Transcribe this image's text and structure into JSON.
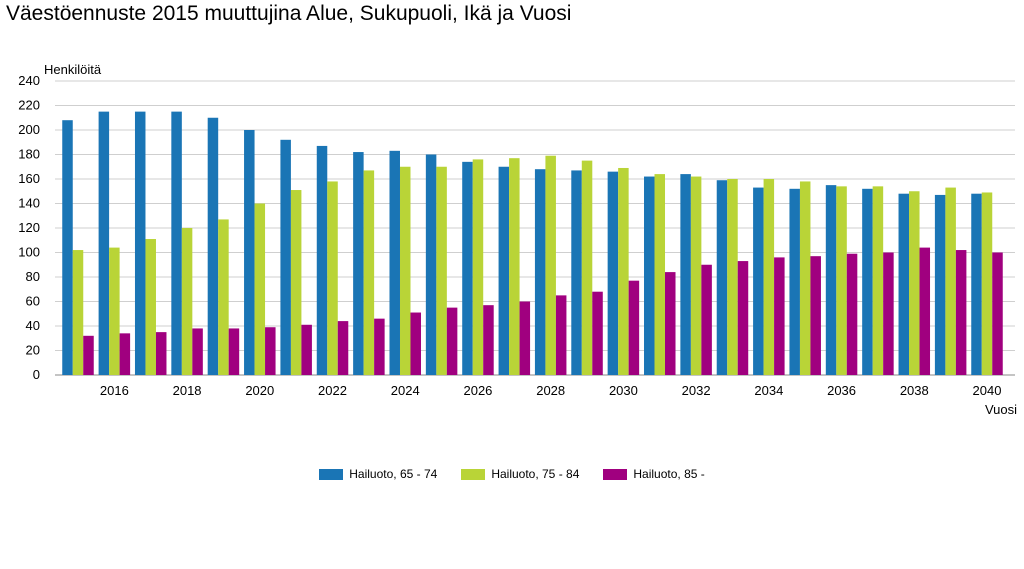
{
  "chart_data": {
    "type": "bar",
    "title": "Väestöennuste 2015 muuttujina Alue, Sukupuoli, Ikä ja Vuosi",
    "ylabel": "Henkilöitä",
    "xlabel": "Vuosi",
    "ylim": [
      0,
      240
    ],
    "yticks": [
      0,
      20,
      40,
      60,
      80,
      100,
      120,
      140,
      160,
      180,
      200,
      220,
      240
    ],
    "grid": true,
    "legend_position": "bottom",
    "categories": [
      "2015",
      "2016",
      "2017",
      "2018",
      "2019",
      "2020",
      "2021",
      "2022",
      "2023",
      "2024",
      "2025",
      "2026",
      "2027",
      "2028",
      "2029",
      "2030",
      "2031",
      "2032",
      "2033",
      "2034",
      "2035",
      "2036",
      "2037",
      "2038",
      "2039",
      "2040"
    ],
    "x_tick_labels": [
      "",
      "2016",
      "",
      "2018",
      "",
      "2020",
      "",
      "2022",
      "",
      "2024",
      "",
      "2026",
      "",
      "2028",
      "",
      "2030",
      "",
      "2032",
      "",
      "2034",
      "",
      "2036",
      "",
      "2038",
      "",
      "2040"
    ],
    "series": [
      {
        "name": "Hailuoto, 65 - 74",
        "color": "#1a75b5",
        "values": [
          208,
          215,
          215,
          215,
          210,
          200,
          192,
          187,
          182,
          183,
          180,
          174,
          170,
          168,
          167,
          166,
          162,
          164,
          159,
          153,
          152,
          155,
          152,
          148,
          147,
          148
        ]
      },
      {
        "name": "Hailuoto, 75 - 84",
        "color": "#b9d437",
        "values": [
          102,
          104,
          111,
          120,
          127,
          140,
          151,
          158,
          167,
          170,
          170,
          176,
          177,
          179,
          175,
          169,
          164,
          162,
          160,
          160,
          158,
          154,
          154,
          150,
          153,
          149
        ]
      },
      {
        "name": "Hailuoto, 85 -",
        "color": "#a0007f",
        "values": [
          32,
          34,
          35,
          38,
          38,
          39,
          41,
          44,
          46,
          51,
          55,
          57,
          60,
          65,
          68,
          77,
          84,
          90,
          93,
          96,
          97,
          99,
          100,
          104,
          102,
          100
        ]
      }
    ]
  }
}
